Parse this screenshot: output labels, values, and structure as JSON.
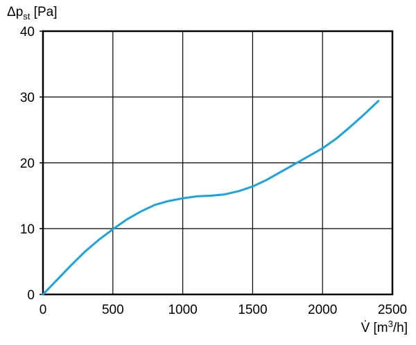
{
  "chart_data": {
    "type": "line",
    "title": "",
    "ylabel": {
      "main": "Δp",
      "sub": "st",
      "unit": " [Pa]"
    },
    "xlabel": {
      "symbol": "V̇",
      "unit_open": " [m",
      "unit_sup": "3",
      "unit_close": "/h]"
    },
    "xlim": [
      0,
      2500
    ],
    "ylim": [
      0,
      40
    ],
    "x_ticks": [
      0,
      500,
      1000,
      1500,
      2000,
      2500
    ],
    "y_ticks": [
      0,
      10,
      20,
      30,
      40
    ],
    "grid": true,
    "legend": "none",
    "series": [
      {
        "color": "#1aa3e0",
        "x": [
          0,
          100,
          200,
          300,
          400,
          500,
          600,
          700,
          800,
          900,
          1000,
          1100,
          1200,
          1300,
          1400,
          1500,
          1600,
          1700,
          1800,
          1900,
          2000,
          2100,
          2200,
          2300,
          2400
        ],
        "y": [
          0,
          2.2,
          4.4,
          6.5,
          8.3,
          9.9,
          11.4,
          12.6,
          13.6,
          14.2,
          14.6,
          14.9,
          15.0,
          15.2,
          15.7,
          16.4,
          17.4,
          18.6,
          19.8,
          21.0,
          22.2,
          23.7,
          25.5,
          27.4,
          29.4
        ]
      }
    ]
  }
}
